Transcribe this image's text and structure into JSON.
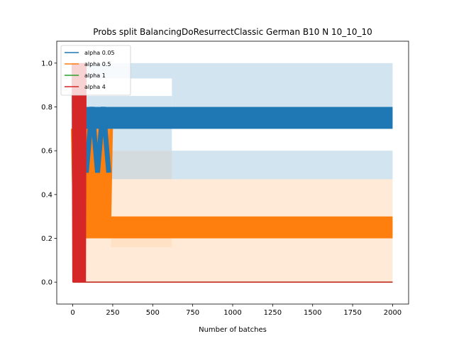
{
  "chart_data": {
    "type": "line",
    "title": "Probs split BalancingDoResurrectClassic German B10 N 10_10_10",
    "xlabel": "Number of batches",
    "ylabel": "",
    "xlim": [
      -100,
      2100
    ],
    "ylim": [
      -0.1,
      1.1
    ],
    "x_ticks": [
      0,
      250,
      500,
      750,
      1000,
      1250,
      1500,
      1750,
      2000
    ],
    "y_ticks": [
      0.0,
      0.2,
      0.4,
      0.6,
      0.8,
      1.0
    ],
    "legend_position": "top-left",
    "series": [
      {
        "name": "alpha 0.05",
        "color": "#1f77b4",
        "band_color": "#aecde6",
        "main_low": 0.7,
        "main_high": 0.8,
        "band_regions": [
          {
            "x0": 50,
            "x1": 620,
            "low": 0.6,
            "high": 0.85
          },
          {
            "x0": 620,
            "x1": 2000,
            "low": 0.7,
            "high": 0.93
          },
          {
            "x0": 240,
            "x1": 2000,
            "low": 0.47,
            "high": 0.6
          },
          {
            "x0": 50,
            "x1": 2000,
            "low": 0.93,
            "high": 1.0
          }
        ],
        "oscillation": {
          "x0": 50,
          "x1": 240,
          "low": 0.5,
          "high": 0.8
        }
      },
      {
        "name": "alpha 0.5",
        "color": "#ff7f0e",
        "band_color": "#ffd8b8",
        "main_low": 0.2,
        "main_high": 0.3,
        "band_regions": [
          {
            "x0": 240,
            "x1": 620,
            "low": 0.16,
            "high": 0.6
          },
          {
            "x0": 620,
            "x1": 2000,
            "low": 0.3,
            "high": 0.47
          },
          {
            "x0": 80,
            "x1": 2000,
            "low": 0.0,
            "high": 0.2
          }
        ],
        "oscillation": {
          "x0": 0,
          "x1": 240,
          "low": 0.2,
          "high": 0.7
        }
      },
      {
        "name": "alpha 1",
        "color": "#2ca02c",
        "main_value": 0.0
      },
      {
        "name": "alpha 4",
        "color": "#d62728",
        "main_value": 0.0,
        "oscillation": {
          "x0": 0,
          "x1": 80,
          "low": 0.0,
          "high": 1.0
        }
      }
    ]
  }
}
